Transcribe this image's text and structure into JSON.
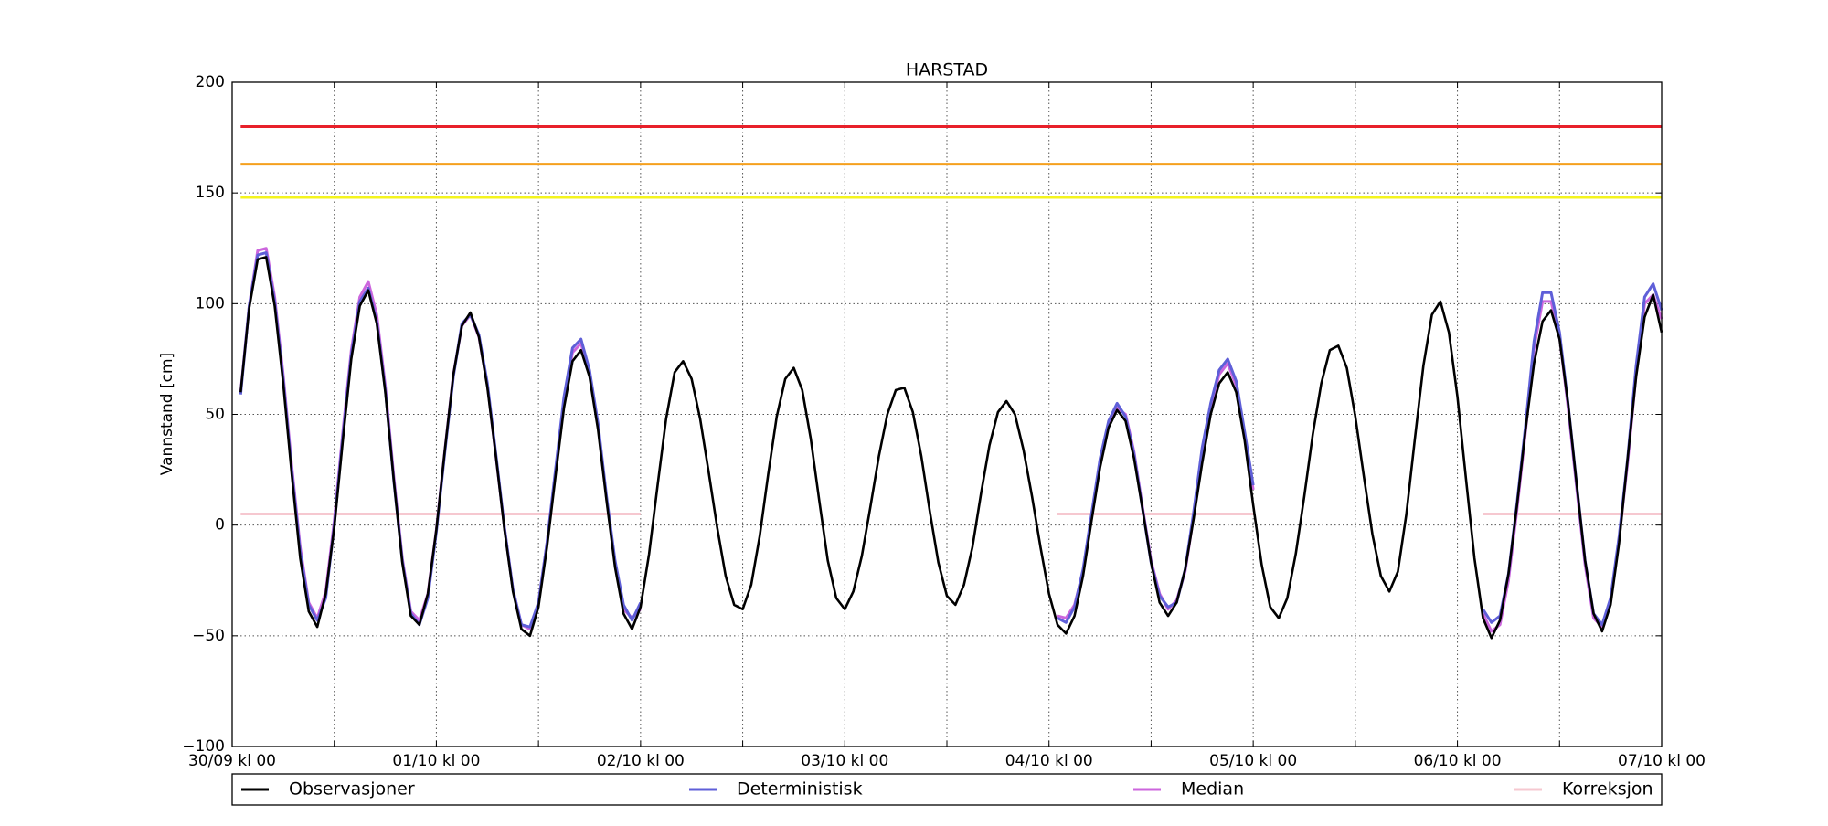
{
  "chart_data": {
    "type": "line",
    "title": "HARSTAD",
    "y_label": "Vannstand [cm]",
    "xlim": [
      0,
      168
    ],
    "ylim": [
      -100,
      200
    ],
    "xticks": [
      {
        "value": 0,
        "label": "30/09 kl 00"
      },
      {
        "value": 24,
        "label": "01/10 kl 00"
      },
      {
        "value": 48,
        "label": "02/10 kl 00"
      },
      {
        "value": 72,
        "label": "03/10 kl 00"
      },
      {
        "value": 96,
        "label": "04/10 kl 00"
      },
      {
        "value": 120,
        "label": "05/10 kl 00"
      },
      {
        "value": 144,
        "label": "06/10 kl 00"
      },
      {
        "value": 168,
        "label": "07/10 kl 00"
      }
    ],
    "xminor_ticks": [
      12,
      36,
      60,
      84,
      108,
      132,
      156
    ],
    "yticks": [
      {
        "value": -100,
        "label": "−100"
      },
      {
        "value": -50,
        "label": "−50"
      },
      0,
      50,
      100,
      150,
      200
    ],
    "grid": true,
    "thresholds": [
      {
        "value": 180,
        "color": "#e8202a"
      },
      {
        "value": 163,
        "color": "#f5a01e"
      },
      {
        "value": 148,
        "color": "#f4f41e"
      }
    ],
    "x": [
      1,
      2,
      3,
      4,
      5,
      6,
      7,
      8,
      9,
      10,
      11,
      12,
      13,
      14,
      15,
      16,
      17,
      18,
      19,
      20,
      21,
      22,
      23,
      24,
      25,
      26,
      27,
      28,
      29,
      30,
      31,
      32,
      33,
      34,
      35,
      36,
      37,
      38,
      39,
      40,
      41,
      42,
      43,
      44,
      45,
      46,
      47,
      48,
      49,
      50,
      51,
      52,
      53,
      54,
      55,
      56,
      57,
      58,
      59,
      60,
      61,
      62,
      63,
      64,
      65,
      66,
      67,
      68,
      69,
      70,
      71,
      72,
      73,
      74,
      75,
      76,
      77,
      78,
      79,
      80,
      81,
      82,
      83,
      84,
      85,
      86,
      87,
      88,
      89,
      90,
      91,
      92,
      93,
      94,
      95,
      96,
      97,
      98,
      99,
      100,
      101,
      102,
      103,
      104,
      105,
      106,
      107,
      108,
      109,
      110,
      111,
      112,
      113,
      114,
      115,
      116,
      117,
      118,
      119,
      120,
      121,
      122,
      123,
      124,
      125,
      126,
      127,
      128,
      129,
      130,
      131,
      132,
      133,
      134,
      135,
      136,
      137,
      138,
      139,
      140,
      141,
      142,
      143,
      144,
      145,
      146,
      147,
      148,
      149,
      150,
      151,
      152,
      153,
      154,
      155,
      156,
      157,
      158,
      159,
      160,
      161,
      162,
      163,
      164,
      165,
      166,
      167,
      168
    ],
    "series": [
      {
        "name": "Observasjoner",
        "color": "#000000",
        "values": [
          60,
          98,
          120,
          121,
          99,
          64,
          23,
          -15,
          -39,
          -46,
          -31,
          -1,
          38,
          75,
          99,
          106,
          91,
          60,
          20,
          -17,
          -41,
          -45,
          -31,
          -2,
          34,
          68,
          90,
          96,
          85,
          62,
          31,
          -2,
          -30,
          -47,
          -50,
          -37,
          -10,
          22,
          53,
          74,
          79,
          67,
          43,
          11,
          -19,
          -40,
          -47,
          -37,
          -13,
          18,
          48,
          69,
          74,
          66,
          48,
          24,
          -1,
          -23,
          -36,
          -38,
          -27,
          -5,
          23,
          49,
          66,
          71,
          61,
          39,
          11,
          -16,
          -33,
          -38,
          -30,
          -14,
          8,
          31,
          50,
          61,
          62,
          51,
          31,
          6,
          -17,
          -32,
          -36,
          -27,
          -10,
          14,
          36,
          51,
          56,
          50,
          34,
          13,
          -10,
          -31,
          -45,
          -49,
          -41,
          -23,
          2,
          26,
          44,
          52,
          47,
          30,
          7,
          -17,
          -35,
          -41,
          -35,
          -20,
          3,
          28,
          50,
          64,
          69,
          60,
          38,
          9,
          -18,
          -37,
          -42,
          -33,
          -13,
          13,
          41,
          64,
          79,
          81,
          71,
          49,
          22,
          -4,
          -23,
          -30,
          -21,
          5,
          39,
          72,
          95,
          101,
          87,
          58,
          21,
          -15,
          -42,
          -51,
          -43,
          -22,
          9,
          43,
          73,
          92,
          97,
          84,
          55,
          19,
          -16,
          -40,
          -48,
          -36,
          -8,
          30,
          67,
          94,
          104,
          87
        ]
      },
      {
        "name": "Deterministisk",
        "color": "#5f5fd8",
        "values": [
          59,
          99,
          122,
          123,
          101,
          66,
          25,
          -12,
          -36,
          -43,
          -33,
          0,
          40,
          77,
          101,
          107,
          92,
          61,
          20,
          -16,
          -40,
          -45,
          -33,
          -3,
          33,
          67,
          91,
          95,
          86,
          64,
          32,
          -1,
          -29,
          -45,
          -46,
          -35,
          -8,
          25,
          58,
          80,
          84,
          70,
          46,
          13,
          -16,
          -36,
          -43,
          -35,
          null,
          null,
          null,
          null,
          null,
          null,
          null,
          null,
          null,
          null,
          null,
          null,
          null,
          null,
          null,
          null,
          null,
          null,
          null,
          null,
          null,
          null,
          null,
          null,
          null,
          null,
          null,
          null,
          null,
          null,
          null,
          null,
          null,
          null,
          null,
          null,
          null,
          null,
          null,
          null,
          null,
          null,
          null,
          null,
          null,
          null,
          null,
          null,
          -42,
          -44,
          -37,
          -20,
          5,
          30,
          47,
          55,
          49,
          32,
          7,
          -17,
          -32,
          -37,
          -35,
          -20,
          6,
          35,
          55,
          70,
          75,
          65,
          42,
          18,
          null,
          null,
          null,
          null,
          null,
          null,
          null,
          null,
          null,
          null,
          null,
          null,
          null,
          null,
          null,
          null,
          null,
          null,
          null,
          null,
          null,
          null,
          null,
          null,
          null,
          null,
          -38,
          -44,
          -41,
          -22,
          10,
          45,
          83,
          105,
          105,
          87,
          55,
          19,
          -16,
          -40,
          -45,
          -33,
          -5,
          30,
          72,
          103,
          109,
          97
        ]
      },
      {
        "name": "Median",
        "color": "#cc66dd",
        "values": [
          60,
          99,
          124,
          125,
          103,
          68,
          27,
          -10,
          -35,
          -42,
          -30,
          2,
          42,
          79,
          103,
          110,
          95,
          63,
          22,
          -15,
          -39,
          -43,
          -31,
          -2,
          34,
          68,
          90,
          95,
          85,
          63,
          31,
          -1,
          -29,
          -45,
          -47,
          -35,
          -8,
          24,
          56,
          78,
          82,
          69,
          45,
          12,
          -17,
          -38,
          -42,
          -38,
          null,
          null,
          null,
          null,
          null,
          null,
          null,
          null,
          null,
          null,
          null,
          null,
          null,
          null,
          null,
          null,
          null,
          null,
          null,
          null,
          null,
          null,
          null,
          null,
          null,
          null,
          null,
          null,
          null,
          null,
          null,
          null,
          null,
          null,
          null,
          null,
          null,
          null,
          null,
          null,
          null,
          null,
          null,
          null,
          null,
          null,
          null,
          null,
          -41,
          -42,
          -36,
          -21,
          4,
          29,
          46,
          53,
          50,
          33,
          8,
          -16,
          -31,
          -38,
          -34,
          -21,
          4,
          33,
          53,
          68,
          73,
          63,
          40,
          16,
          null,
          null,
          null,
          null,
          null,
          null,
          null,
          null,
          null,
          null,
          null,
          null,
          null,
          null,
          null,
          null,
          null,
          null,
          null,
          null,
          null,
          null,
          null,
          null,
          null,
          null,
          -40,
          -48,
          -45,
          -25,
          7,
          42,
          80,
          101,
          101,
          85,
          53,
          17,
          -18,
          -42,
          -46,
          -34,
          -6,
          28,
          68,
          100,
          104,
          93
        ]
      },
      {
        "name": "Korreksjon",
        "color": "#f6c8d0",
        "values": [
          5,
          5,
          5,
          5,
          5,
          5,
          5,
          5,
          5,
          5,
          5,
          5,
          5,
          5,
          5,
          5,
          5,
          5,
          5,
          5,
          5,
          5,
          5,
          5,
          5,
          5,
          5,
          5,
          5,
          5,
          5,
          5,
          5,
          5,
          5,
          5,
          5,
          5,
          5,
          5,
          5,
          5,
          5,
          5,
          5,
          5,
          5,
          5,
          null,
          null,
          null,
          null,
          null,
          null,
          null,
          null,
          null,
          null,
          null,
          null,
          null,
          null,
          null,
          null,
          null,
          null,
          null,
          null,
          null,
          null,
          null,
          null,
          null,
          null,
          null,
          null,
          null,
          null,
          null,
          null,
          null,
          null,
          null,
          null,
          null,
          null,
          null,
          null,
          null,
          null,
          null,
          null,
          null,
          null,
          null,
          null,
          5,
          5,
          5,
          5,
          5,
          5,
          5,
          5,
          5,
          5,
          5,
          5,
          5,
          5,
          5,
          5,
          5,
          5,
          5,
          5,
          5,
          5,
          5,
          5,
          null,
          null,
          null,
          null,
          null,
          null,
          null,
          null,
          null,
          null,
          null,
          null,
          null,
          null,
          null,
          null,
          null,
          null,
          null,
          null,
          null,
          null,
          null,
          null,
          null,
          null,
          5,
          5,
          5,
          5,
          5,
          5,
          5,
          5,
          5,
          5,
          5,
          5,
          5,
          5,
          5,
          5,
          5,
          5,
          5,
          5,
          5,
          5
        ]
      }
    ]
  }
}
